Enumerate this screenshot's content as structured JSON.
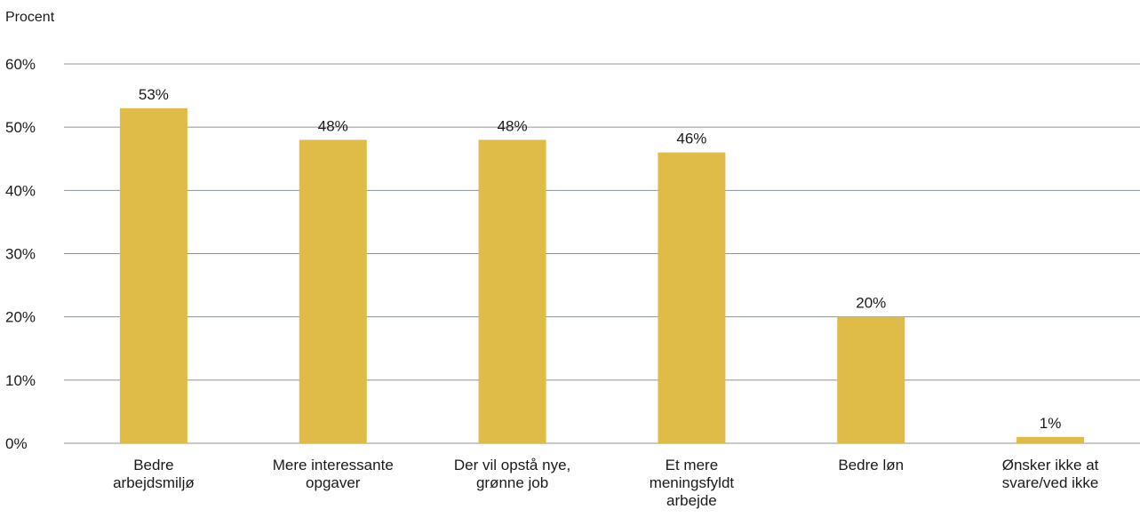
{
  "chart_data": {
    "type": "bar",
    "ylabel": "Procent",
    "ylim": [
      0,
      60
    ],
    "yticks": [
      0,
      10,
      20,
      30,
      40,
      50,
      60
    ],
    "ytick_labels": [
      "0%",
      "10%",
      "20%",
      "30%",
      "40%",
      "50%",
      "60%"
    ],
    "categories": [
      [
        "Bedre",
        "arbejdsmiljø"
      ],
      [
        "Mere interessante",
        "opgaver"
      ],
      [
        "Der vil opstå nye,",
        "grønne job"
      ],
      [
        "Et mere",
        "meningsfyldt",
        "arbejde"
      ],
      [
        "Bedre løn"
      ],
      [
        "Ønsker ikke at",
        "svare/ved ikke"
      ]
    ],
    "values": [
      53,
      48,
      48,
      46,
      20,
      1
    ],
    "value_labels": [
      "53%",
      "48%",
      "48%",
      "46%",
      "20%",
      "1%"
    ],
    "grid": true,
    "bar_color": "#DFBC48",
    "grid_color": "#8A949C"
  }
}
